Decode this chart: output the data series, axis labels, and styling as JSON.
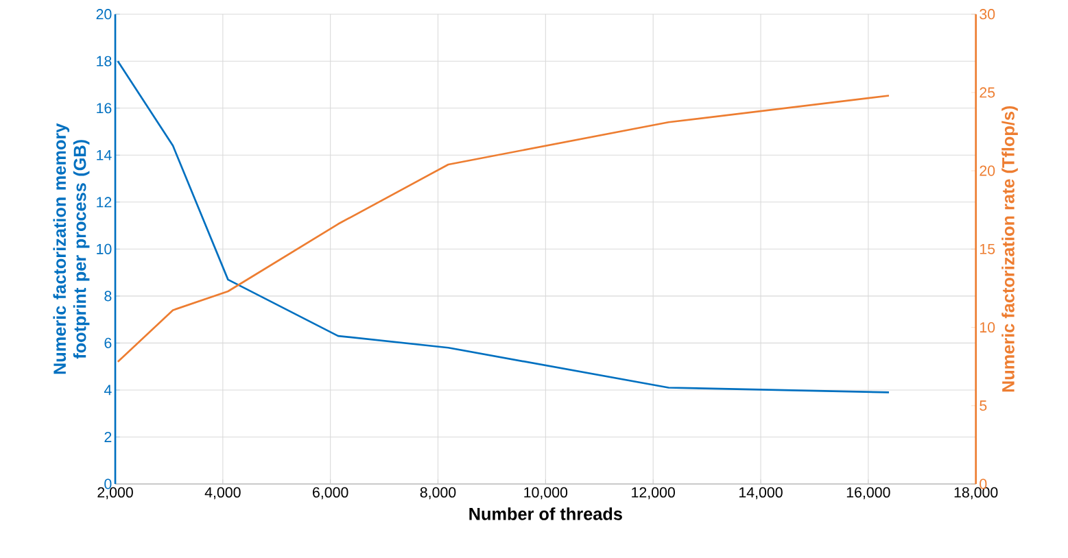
{
  "chart_data": {
    "type": "line",
    "xlabel": "Number of threads",
    "ylabel": "Numeric factorization memory footprint per process (GB)",
    "y2label": "Numeric factorization rate (Tflop/s)",
    "x": [
      2048,
      3072,
      4096,
      6144,
      8192,
      12288,
      16384
    ],
    "series": [
      {
        "color": "#0070c0",
        "axis": "y",
        "values": [
          18.0,
          14.4,
          8.7,
          6.3,
          5.8,
          4.1,
          3.9
        ]
      },
      {
        "color": "#ed7d31",
        "axis": "y2",
        "values": [
          7.8,
          11.1,
          12.3,
          16.6,
          20.4,
          23.1,
          24.8
        ]
      }
    ],
    "xlim": [
      2000,
      18000
    ],
    "xticks": [
      {
        "value": 2000,
        "label": "2,000"
      },
      {
        "value": 4000,
        "label": "4,000"
      },
      {
        "value": 6000,
        "label": "6,000"
      },
      {
        "value": 8000,
        "label": "8,000"
      },
      {
        "value": 10000,
        "label": "10,000"
      },
      {
        "value": 12000,
        "label": "12,000"
      },
      {
        "value": 14000,
        "label": "14,000"
      },
      {
        "value": 16000,
        "label": "16,000"
      },
      {
        "value": 18000,
        "label": "18,000"
      }
    ],
    "ylim": [
      0,
      20
    ],
    "yticks": [
      0,
      2,
      4,
      6,
      8,
      10,
      12,
      14,
      16,
      18,
      20
    ],
    "y2lim": [
      0,
      30
    ],
    "y2ticks": [
      0,
      5,
      10,
      15,
      20,
      25,
      30
    ],
    "grid": true,
    "marker": "none"
  }
}
